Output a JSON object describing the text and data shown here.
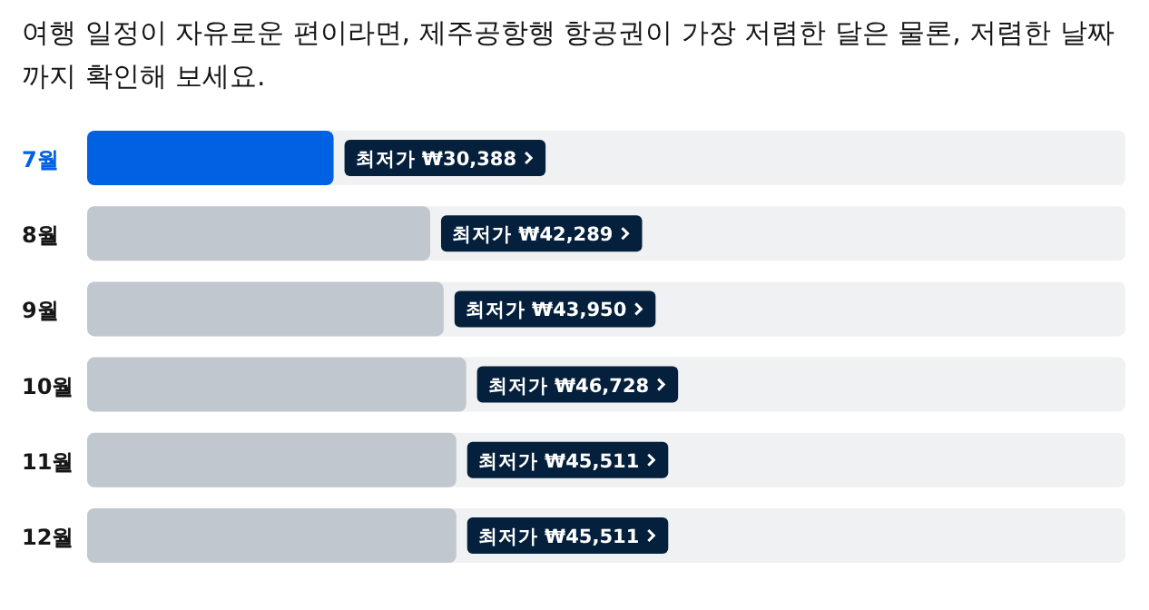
{
  "chart_data": {
    "type": "bar",
    "orientation": "horizontal",
    "title": "여행 일정이 자유로운 편이라면, 제주공항행 항공권이 가장 저렴한 달은 물론, 저렴한 날짜까지 확인해 보세요.",
    "categories": [
      "7월",
      "8월",
      "9월",
      "10월",
      "11월",
      "12월"
    ],
    "values": [
      30388,
      42289,
      43950,
      46728,
      45511,
      45511
    ],
    "colors": [
      "#0062e3",
      "#c1c7cf",
      "#c1c7cf",
      "#c1c7cf",
      "#c1c7cf",
      "#c1c7cf"
    ],
    "value_labels": [
      "최저가 ₩30,388",
      "최저가 ₩42,289",
      "최저가 ₩43,950",
      "최저가 ₩46,728",
      "최저가 ₩45,511",
      "최저가 ₩45,511"
    ],
    "xlim": [
      0,
      128000
    ],
    "tick_labels": "y"
  }
}
